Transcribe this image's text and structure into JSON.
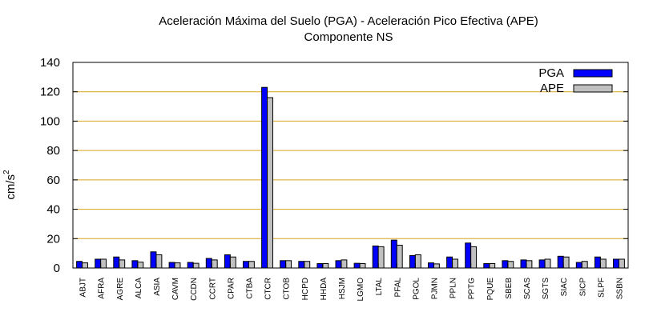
{
  "chart_data": {
    "type": "bar",
    "title": "Aceleración Máxima del Suelo (PGA) -  Aceleración Pico Efectiva (APE)",
    "subtitle": "Componente NS",
    "ylabel": "cm/s",
    "ylabel_sup": "2",
    "xlabel": "",
    "ylim": [
      0,
      140
    ],
    "yticks": [
      0,
      20,
      40,
      60,
      80,
      100,
      120,
      140
    ],
    "grid": true,
    "legend_position": "top-right",
    "categories": [
      "ABJT",
      "AFRA",
      "AGRE",
      "ALCA",
      "ASIA",
      "CAVM",
      "CCDN",
      "CCRT",
      "CPAR",
      "CTBA",
      "CTCR",
      "CTOB",
      "HCPD",
      "HHDA",
      "HSJM",
      "LGMO",
      "LTAL",
      "PFAL",
      "PGOL",
      "PJMN",
      "PPLN",
      "PPTG",
      "PQUE",
      "SBEB",
      "SCAS",
      "SGTS",
      "SIAC",
      "SICP",
      "SLPF",
      "SSBN"
    ],
    "series": [
      {
        "name": "PGA",
        "color": "#0000ff",
        "values": [
          4.5,
          6.0,
          7.5,
          5.0,
          11.0,
          3.8,
          3.8,
          6.5,
          9.0,
          4.5,
          123.0,
          5.0,
          4.5,
          3.0,
          5.0,
          3.2,
          15.0,
          19.0,
          8.5,
          3.5,
          7.5,
          17.0,
          3.0,
          5.0,
          5.5,
          5.5,
          8.0,
          3.8,
          7.5,
          6.0
        ]
      },
      {
        "name": "APE",
        "color": "#c0c0c0",
        "values": [
          3.5,
          6.0,
          5.5,
          4.0,
          9.0,
          3.5,
          3.2,
          5.5,
          7.5,
          4.5,
          116.0,
          5.0,
          4.5,
          3.0,
          5.5,
          3.0,
          14.5,
          15.5,
          9.0,
          2.8,
          6.0,
          14.5,
          3.0,
          4.5,
          5.0,
          6.0,
          7.5,
          4.5,
          6.0,
          6.0
        ]
      }
    ],
    "grid_color": "#daa520"
  }
}
